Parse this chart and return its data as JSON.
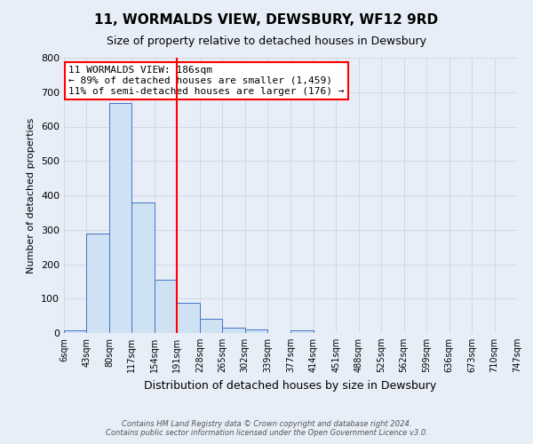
{
  "title": "11, WORMALDS VIEW, DEWSBURY, WF12 9RD",
  "subtitle": "Size of property relative to detached houses in Dewsbury",
  "xlabel": "Distribution of detached houses by size in Dewsbury",
  "ylabel": "Number of detached properties",
  "bin_edges": [
    6,
    43,
    80,
    117,
    154,
    191,
    228,
    265,
    302,
    339,
    377,
    414,
    451,
    488,
    525,
    562,
    599,
    636,
    673,
    710,
    747
  ],
  "bin_counts": [
    8,
    290,
    668,
    380,
    155,
    88,
    42,
    15,
    10,
    0,
    8,
    0,
    0,
    0,
    0,
    0,
    0,
    0,
    0,
    0
  ],
  "bar_facecolor": "#cfe2f3",
  "bar_edgecolor": "#4472c4",
  "vline_x": 191,
  "vline_color": "red",
  "ylim": [
    0,
    800
  ],
  "yticks": [
    0,
    100,
    200,
    300,
    400,
    500,
    600,
    700,
    800
  ],
  "xtick_labels": [
    "6sqm",
    "43sqm",
    "80sqm",
    "117sqm",
    "154sqm",
    "191sqm",
    "228sqm",
    "265sqm",
    "302sqm",
    "339sqm",
    "377sqm",
    "414sqm",
    "451sqm",
    "488sqm",
    "525sqm",
    "562sqm",
    "599sqm",
    "636sqm",
    "673sqm",
    "710sqm",
    "747sqm"
  ],
  "annotation_title": "11 WORMALDS VIEW: 186sqm",
  "annotation_line1": "← 89% of detached houses are smaller (1,459)",
  "annotation_line2": "11% of semi-detached houses are larger (176) →",
  "annotation_box_color": "#ffffff",
  "annotation_box_edgecolor": "red",
  "grid_color": "#d0d8e8",
  "background_color": "#e8eef8",
  "footer1": "Contains HM Land Registry data © Crown copyright and database right 2024.",
  "footer2": "Contains public sector information licensed under the Open Government Licence v3.0."
}
